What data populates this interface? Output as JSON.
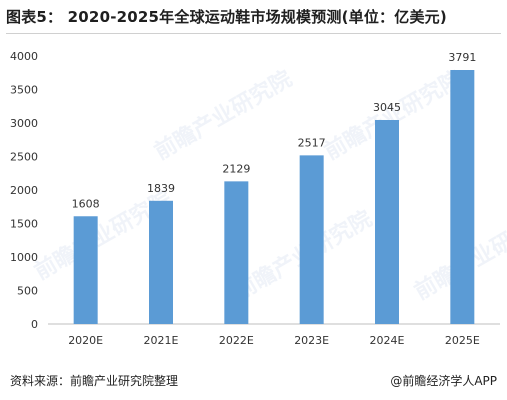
{
  "title": "图表5： 2020-2025年全球运动鞋市场规模预测(单位：亿美元)",
  "source": "资料来源：前瞻产业研究院整理",
  "credit": "@前瞻经济学人APP",
  "watermark": "前瞻产业研究院",
  "colors": {
    "bar": "#5b9bd5",
    "grid": "#e2e2e2",
    "axis": "#bfbfbf",
    "text": "#333333"
  },
  "chart_data": {
    "type": "bar",
    "categories": [
      "2020E",
      "2021E",
      "2022E",
      "2023E",
      "2024E",
      "2025E"
    ],
    "values": [
      1608,
      1839,
      2129,
      2517,
      3045,
      3791
    ],
    "ylim": [
      0,
      4000
    ],
    "yticks": [
      0,
      500,
      1000,
      1500,
      2000,
      2500,
      3000,
      3500,
      4000
    ],
    "grid": false,
    "xlabel": "",
    "ylabel": ""
  }
}
